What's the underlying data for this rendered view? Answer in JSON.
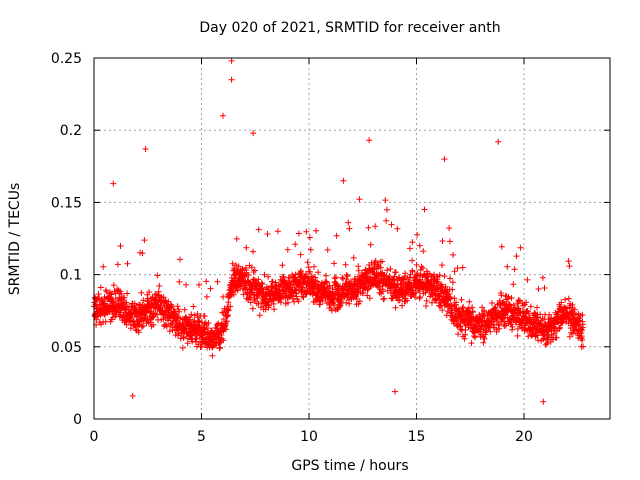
{
  "chart_data": {
    "type": "scatter",
    "title": "Day 020 of 2021, SRMTID for receiver anth",
    "xlabel": "GPS time / hours",
    "ylabel": "SRMTID / TECUs",
    "xlim": [
      0,
      24
    ],
    "ylim": [
      0,
      0.25
    ],
    "xticks": [
      0,
      5,
      10,
      15,
      20
    ],
    "yticks": [
      0,
      0.05,
      0.1,
      0.15,
      0.2,
      0.25
    ],
    "xtick_labels": [
      "0",
      "5",
      "10",
      "15",
      "20"
    ],
    "ytick_labels": [
      "0",
      "0.05",
      "0.1",
      "0.15",
      "0.2",
      "0.25"
    ],
    "grid": true,
    "marker": "plus",
    "color": "#ff0000",
    "series": [
      {
        "name": "SRMTID",
        "x_range": [
          0,
          22.75
        ],
        "note": "dense time series of point markers; values trace the envelope below",
        "trend": {
          "x": [
            0,
            1,
            2,
            3,
            4,
            5,
            5.5,
            6,
            6.5,
            7,
            8,
            9,
            10,
            11,
            12,
            13,
            14,
            15,
            16,
            17,
            18,
            19,
            20,
            21,
            22,
            22.75
          ],
          "y": [
            0.075,
            0.08,
            0.07,
            0.08,
            0.065,
            0.06,
            0.055,
            0.06,
            0.1,
            0.095,
            0.085,
            0.09,
            0.095,
            0.085,
            0.09,
            0.1,
            0.09,
            0.095,
            0.09,
            0.07,
            0.065,
            0.075,
            0.07,
            0.06,
            0.075,
            0.06
          ]
        },
        "outliers": [
          {
            "x": 2.4,
            "y": 0.187
          },
          {
            "x": 6.0,
            "y": 0.21
          },
          {
            "x": 6.4,
            "y": 0.248
          },
          {
            "x": 6.4,
            "y": 0.235
          },
          {
            "x": 7.4,
            "y": 0.198
          },
          {
            "x": 12.8,
            "y": 0.193
          },
          {
            "x": 16.3,
            "y": 0.18
          },
          {
            "x": 18.8,
            "y": 0.192
          },
          {
            "x": 11.6,
            "y": 0.165
          },
          {
            "x": 0.9,
            "y": 0.163
          },
          {
            "x": 1.8,
            "y": 0.016
          },
          {
            "x": 14.0,
            "y": 0.019
          },
          {
            "x": 20.9,
            "y": 0.012
          }
        ]
      }
    ]
  }
}
